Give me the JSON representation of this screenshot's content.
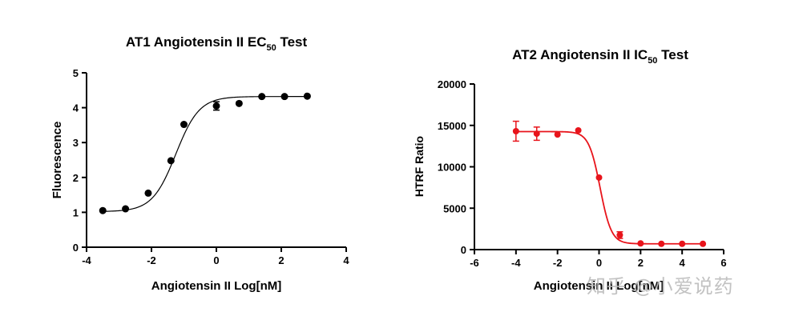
{
  "watermark": "知乎 @小爱说药",
  "chart_data": [
    {
      "type": "scatter",
      "title_main": "AT1 Angiotensin II  EC",
      "title_sub": "50",
      "title_tail": " Test",
      "xlabel": "Angiotensin II Log[nM]",
      "ylabel": "Fluorescence",
      "xlim": [
        -4,
        4
      ],
      "ylim": [
        0,
        5
      ],
      "xticks": [
        -4,
        -2,
        0,
        2,
        4
      ],
      "yticks": [
        0,
        1,
        2,
        3,
        4,
        5
      ],
      "color": "#000000",
      "x": [
        -3.5,
        -2.8,
        -2.1,
        -1.4,
        -1.0,
        0.0,
        0.7,
        1.4,
        2.1,
        2.8
      ],
      "y": [
        1.05,
        1.1,
        1.55,
        2.48,
        3.52,
        4.05,
        4.12,
        4.32,
        4.32,
        4.33
      ],
      "err": [
        0.0,
        0.0,
        0.0,
        0.0,
        0.0,
        0.12,
        0.0,
        0.0,
        0.0,
        0.0
      ],
      "fit": {
        "bottom": 1.02,
        "top": 4.32,
        "logec50": -1.25,
        "hill": 1.2,
        "xrange": [
          -3.5,
          2.8
        ]
      }
    },
    {
      "type": "scatter",
      "title_main": "AT2 Angiotensin II  IC",
      "title_sub": "50",
      "title_tail": " Test",
      "xlabel": "Angiotensin II Log[nM]",
      "ylabel": "HTRF Ratio",
      "xlim": [
        -6,
        6
      ],
      "ylim": [
        0,
        20000
      ],
      "xticks": [
        -6,
        -4,
        -2,
        0,
        2,
        4,
        6
      ],
      "yticks": [
        0,
        5000,
        10000,
        15000,
        20000
      ],
      "color": "#e8141b",
      "x": [
        -4,
        -3,
        -2,
        -1,
        0,
        1,
        2,
        3,
        4,
        5
      ],
      "y": [
        14300,
        14000,
        13900,
        14400,
        8700,
        1750,
        750,
        700,
        700,
        700
      ],
      "err": [
        1200,
        800,
        0,
        0,
        0,
        400,
        0,
        0,
        0,
        0
      ],
      "fit": {
        "bottom": 700,
        "top": 14250,
        "logec50": 0.05,
        "hill": -1.6,
        "xrange": [
          -4,
          5
        ]
      }
    }
  ]
}
